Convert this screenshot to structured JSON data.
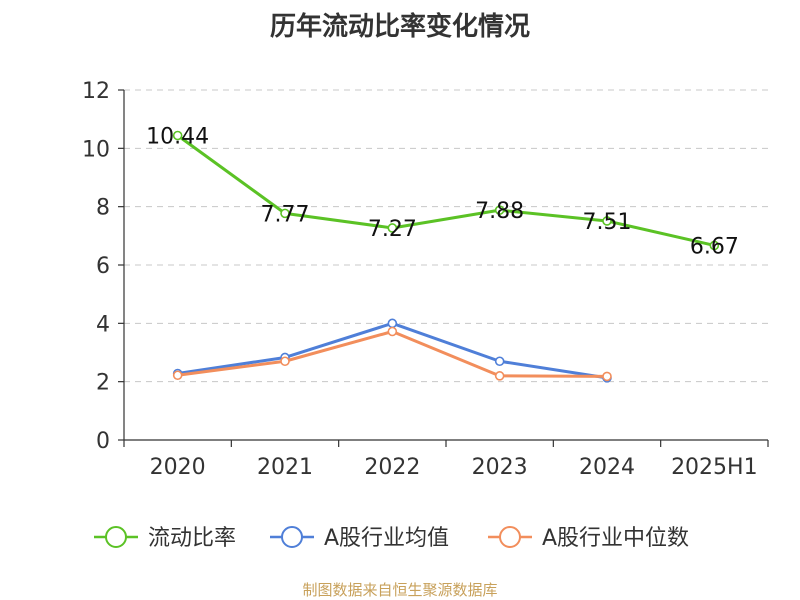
{
  "title": "历年流动比率变化情况",
  "source": "制图数据来自恒生聚源数据库",
  "chart_data": {
    "type": "line",
    "categories": [
      "2020",
      "2021",
      "2022",
      "2023",
      "2024",
      "2025H1"
    ],
    "ylim": [
      0,
      12
    ],
    "yticks": [
      0,
      2,
      4,
      6,
      8,
      10,
      12
    ],
    "grid": true,
    "legend_position": "bottom",
    "series": [
      {
        "name": "流动比率",
        "color": "#5bc225",
        "values": [
          10.44,
          7.77,
          7.27,
          7.88,
          7.51,
          6.67
        ],
        "labels": [
          "10.44",
          "7.77",
          "7.27",
          "7.88",
          "7.51",
          "6.67"
        ]
      },
      {
        "name": "A股行业均值",
        "color": "#4f7fd8",
        "values": [
          2.28,
          2.83,
          4.0,
          2.7,
          2.13,
          null
        ]
      },
      {
        "name": "A股行业中位数",
        "color": "#f28e5c",
        "values": [
          2.22,
          2.7,
          3.72,
          2.2,
          2.18,
          null
        ]
      }
    ]
  }
}
